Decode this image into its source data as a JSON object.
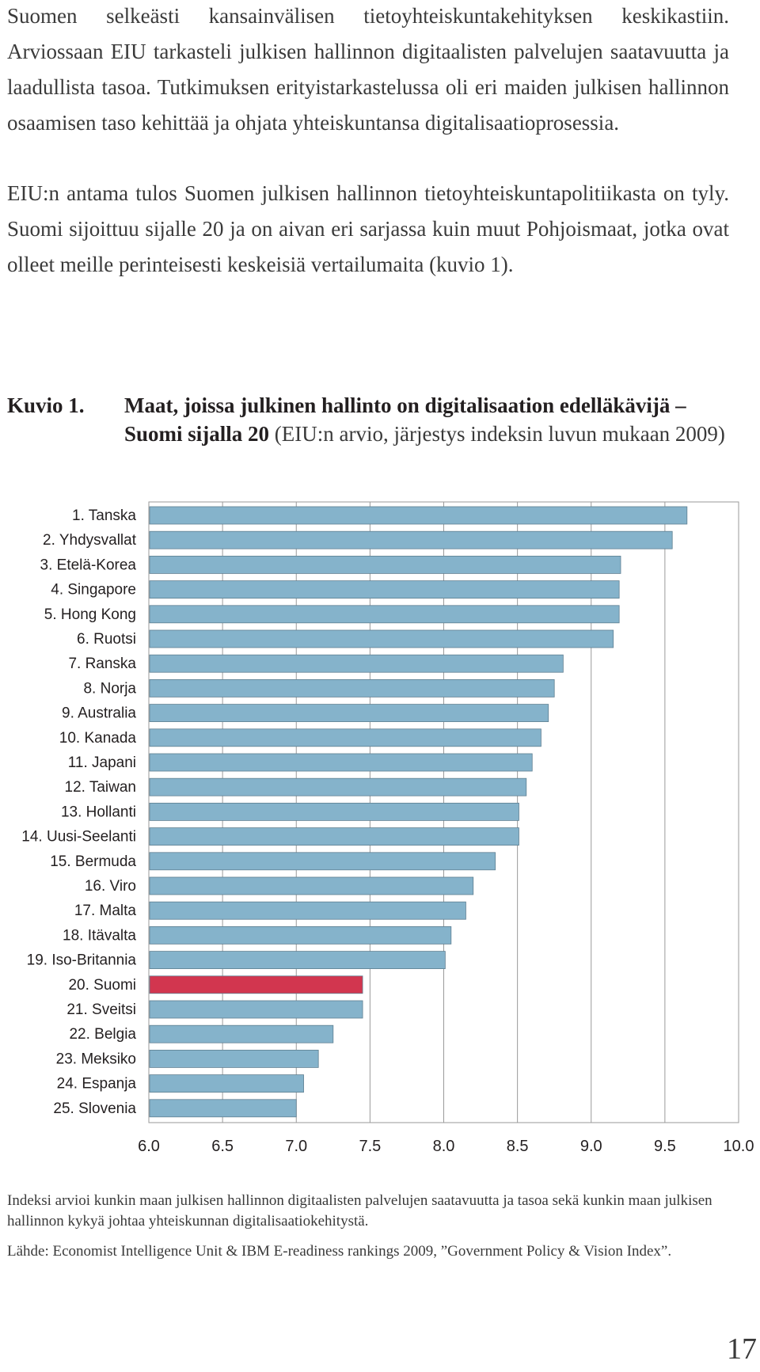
{
  "paragraphs": [
    "Suomen selkeästi kansainvälisen tietoyhteiskuntakehityksen keskikastiin. Arviossaan EIU tarkasteli julkisen hallinnon digitaalisten palvelujen saatavuutta ja laadullista tasoa. Tutkimuksen erityistarkastelussa oli eri maiden julkisen hallinnon osaamisen taso kehittää ja ohjata yhteiskuntansa digitalisaatioprosessia.",
    "EIU:n antama tulos Suomen julkisen hallinnon tietoyhteiskuntapolitiikasta on tyly. Suomi sijoittuu sijalle 20 ja on aivan eri sarjassa kuin muut Pohjoismaat, jotka ovat olleet meille perinteisesti keskeisiä vertailumaita (kuvio 1)."
  ],
  "figure": {
    "label": "Kuvio 1.",
    "title_bold": "Maat, joissa julkinen hallinto on digitalisaation edelläkävijä – Suomi sijalla 20",
    "title_rest": " (EIU:n arvio, järjestys indeksin luvun mukaan 2009)"
  },
  "chart_data": {
    "type": "bar",
    "orientation": "horizontal",
    "categories": [
      "1. Tanska",
      "2. Yhdysvallat",
      "3. Etelä-Korea",
      "4. Singapore",
      "5. Hong Kong",
      "6. Ruotsi",
      "7. Ranska",
      "8. Norja",
      "9. Australia",
      "10. Kanada",
      "11. Japani",
      "12. Taiwan",
      "13. Hollanti",
      "14. Uusi-Seelanti",
      "15. Bermuda",
      "16. Viro",
      "17. Malta",
      "18. Itävalta",
      "19. Iso-Britannia",
      "20. Suomi",
      "21. Sveitsi",
      "22. Belgia",
      "23. Meksiko",
      "24. Espanja",
      "25. Slovenia"
    ],
    "values": [
      9.65,
      9.55,
      9.2,
      9.19,
      9.19,
      9.15,
      8.81,
      8.75,
      8.71,
      8.66,
      8.6,
      8.56,
      8.51,
      8.51,
      8.35,
      8.2,
      8.15,
      8.05,
      8.01,
      7.45,
      7.45,
      7.25,
      7.15,
      7.05,
      7.0
    ],
    "highlight_index": 19,
    "xlim": [
      6.0,
      10.0
    ],
    "xticks": [
      "6.0",
      "6.5",
      "7.0",
      "7.5",
      "8.0",
      "8.5",
      "9.0",
      "9.5",
      "10.0"
    ],
    "grid": true,
    "colors": {
      "bar": "#85b3cb",
      "highlight": "#d2364f",
      "grid": "#9a9a9a"
    }
  },
  "notes": [
    "Indeksi arvioi kunkin maan julkisen hallinnon digitaalisten palvelujen saatavuutta ja tasoa sekä kunkin maan julkisen hallinnon kykyä johtaa yhteiskunnan digitalisaatiokehitystä.",
    "Lähde: Economist Intelligence Unit & IBM E-readiness rankings 2009, ”Government Policy & Vision Index”."
  ],
  "page_number": "17"
}
